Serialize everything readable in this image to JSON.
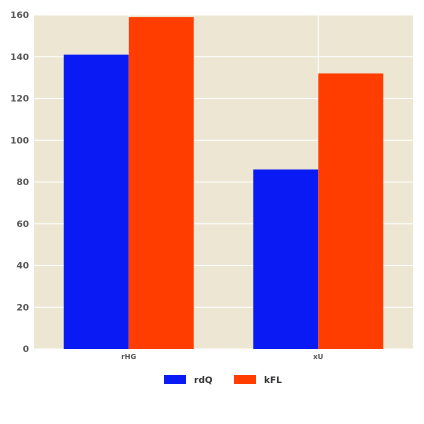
{
  "chart_data": {
    "type": "bar",
    "categories": [
      "rHG",
      "xU"
    ],
    "series": [
      {
        "name": "rdQ",
        "values": [
          141,
          86
        ],
        "color": "#0a1af5"
      },
      {
        "name": "kFL",
        "values": [
          159,
          132
        ],
        "color": "#ff3d00"
      }
    ],
    "title": "",
    "xlabel": "",
    "ylabel": "",
    "ylim": [
      0,
      160
    ],
    "yticks": [
      0,
      20,
      40,
      60,
      80,
      100,
      120,
      140,
      160
    ],
    "grid": true,
    "legend_position": "bottom-center",
    "plot_background": "#ede6d2",
    "grid_color": "#ffffff"
  }
}
